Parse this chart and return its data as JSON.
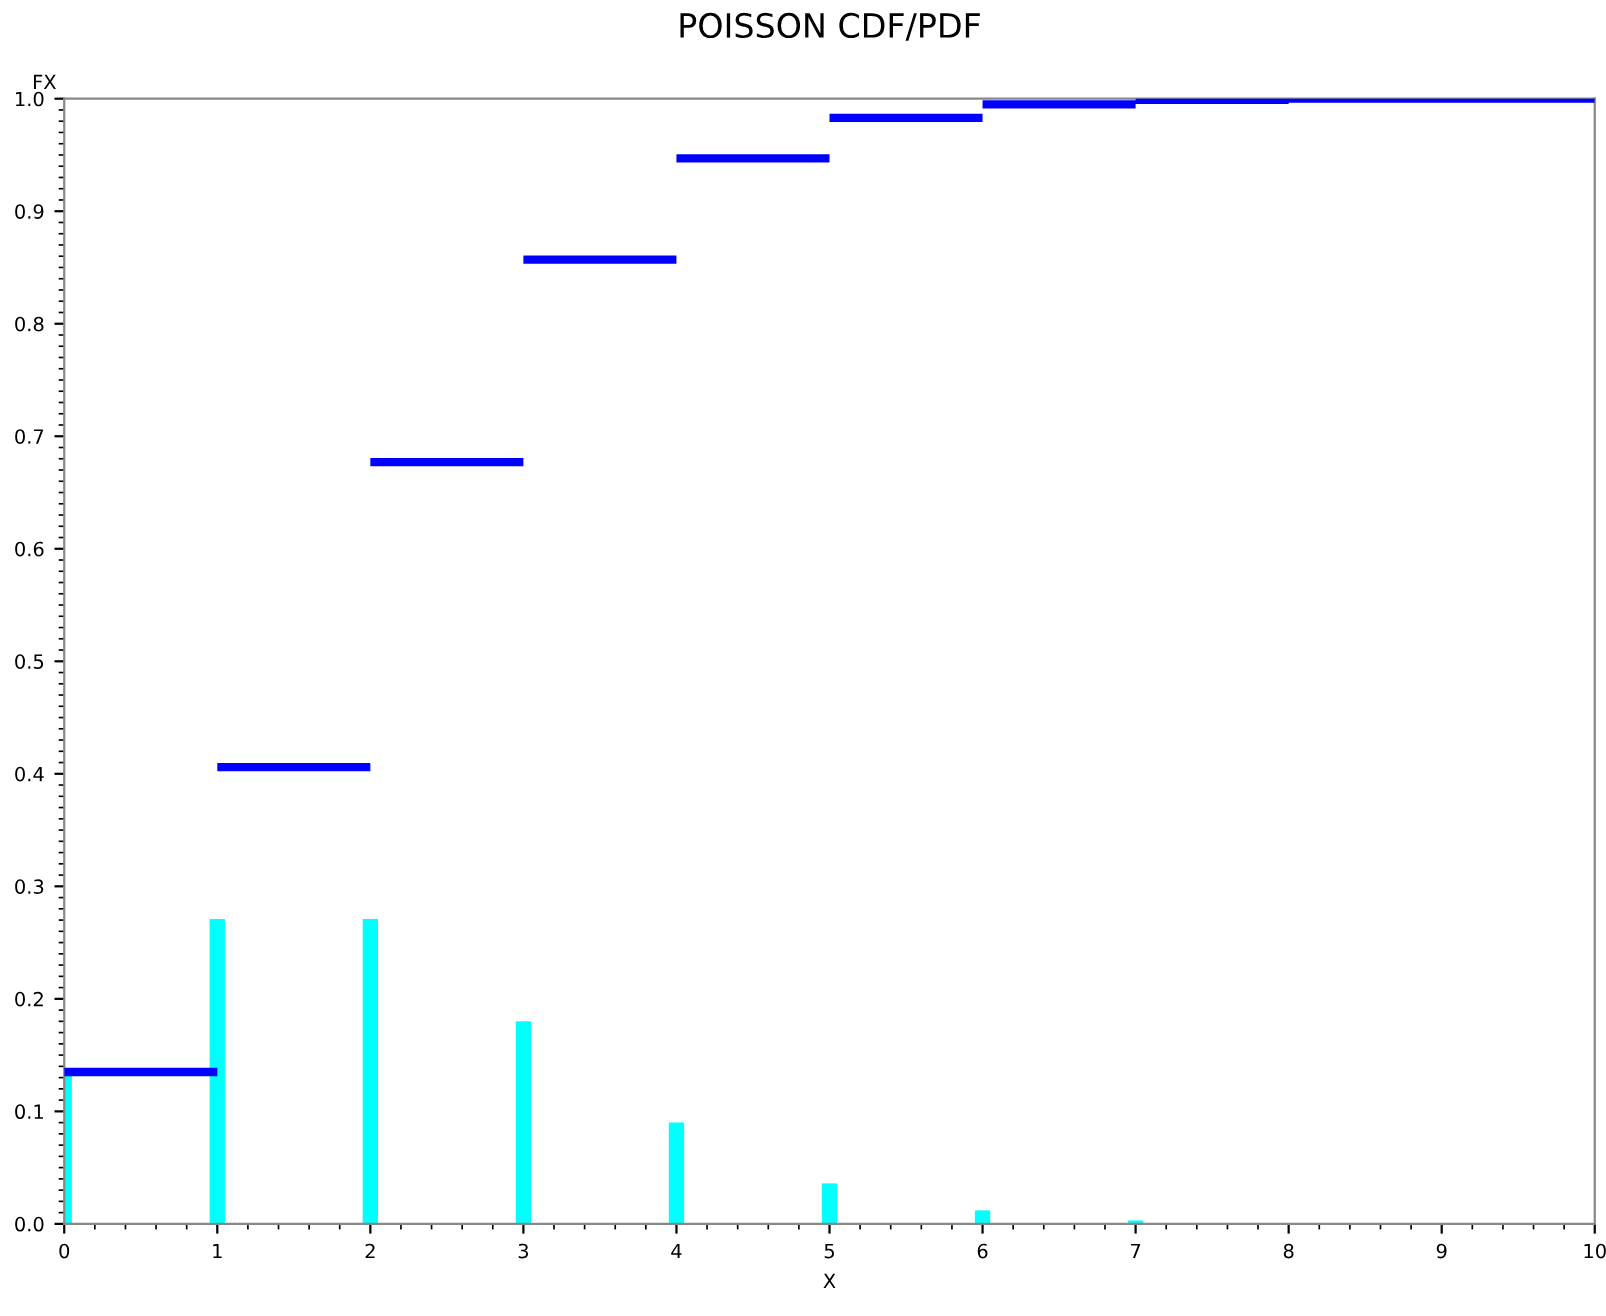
{
  "chart_data": {
    "type": "bar",
    "title": "POISSON CDF/PDF",
    "xlabel": "X",
    "ylabel": "FX",
    "xlim": [
      0,
      10
    ],
    "ylim": [
      0,
      1.0
    ],
    "xticks": [
      0,
      1,
      2,
      3,
      4,
      5,
      6,
      7,
      8,
      9,
      10
    ],
    "yticks": [
      {
        "value": 0,
        "label": "0.0"
      },
      0.1,
      0.2,
      0.3,
      0.4,
      0.5,
      0.6,
      0.7,
      0.8,
      0.9,
      {
        "value": 1,
        "label": "1.0"
      }
    ],
    "grid": false,
    "series": [
      {
        "color": "#00ffff",
        "x": [
          0,
          1,
          2,
          3,
          4,
          5,
          6,
          7
        ],
        "values": [
          0.135,
          0.271,
          0.271,
          0.18,
          0.09,
          0.036,
          0.012,
          0.003
        ]
      },
      {
        "type": "step",
        "color": "#0000ff",
        "x": [
          0,
          1,
          2,
          3,
          4,
          5,
          6,
          7,
          8,
          10
        ],
        "values": [
          0.135,
          0.406,
          0.677,
          0.857,
          0.947,
          0.983,
          0.995,
          0.999,
          1.0,
          1.0
        ]
      }
    ]
  }
}
